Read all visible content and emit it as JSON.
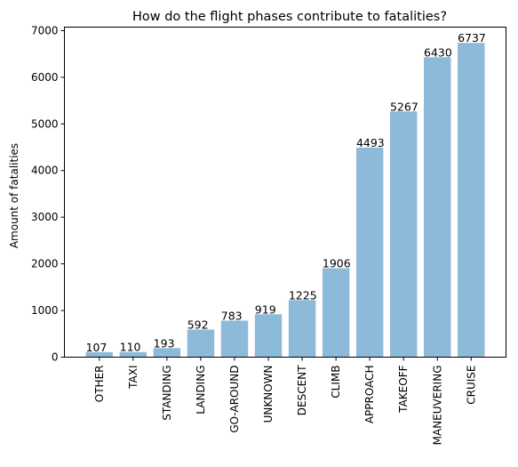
{
  "chart_data": {
    "type": "bar",
    "title": "How do the flight phases contribute to fatalities?",
    "xlabel": "",
    "ylabel": "Amount of fatalities",
    "categories": [
      "OTHER",
      "TAXI",
      "STANDING",
      "LANDING",
      "GO-AROUND",
      "UNKNOWN",
      "DESCENT",
      "CLIMB",
      "APPROACH",
      "TAKEOFF",
      "MANEUVERING",
      "CRUISE"
    ],
    "values": [
      107,
      110,
      193,
      592,
      783,
      919,
      1225,
      1906,
      4493,
      5267,
      6430,
      6737
    ],
    "ylim": [
      0,
      7075
    ],
    "yticks": [
      0,
      1000,
      2000,
      3000,
      4000,
      5000,
      6000,
      7000
    ],
    "bar_color": "#8ebad9",
    "grid": false,
    "legend": "none"
  }
}
